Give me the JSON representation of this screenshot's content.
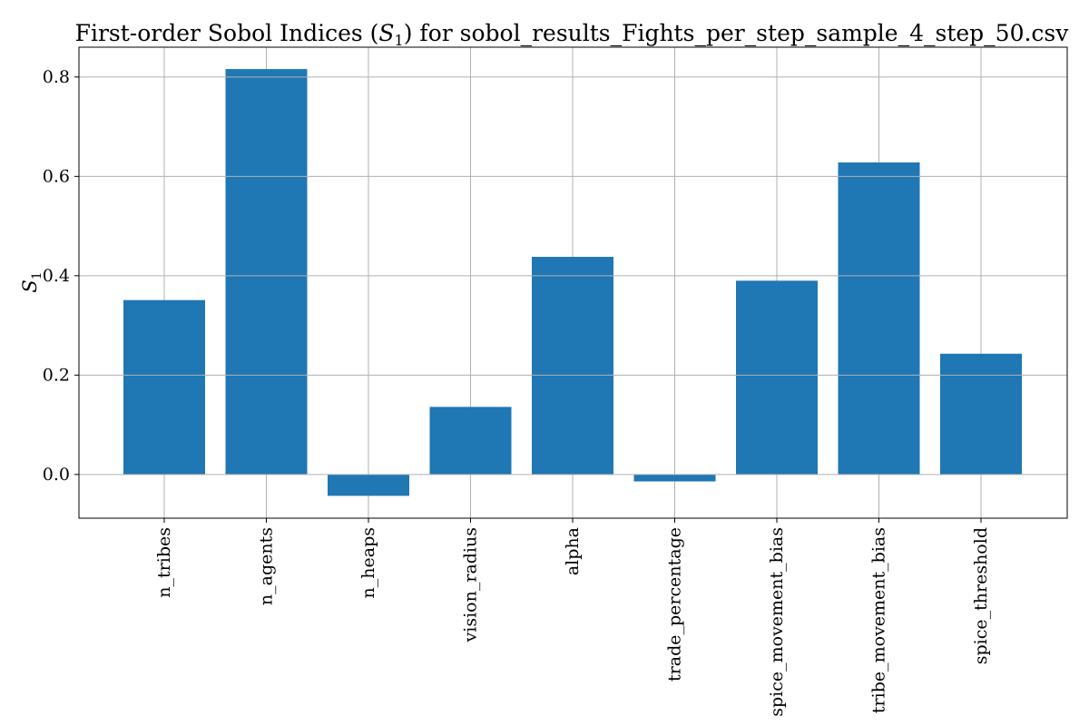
{
  "chart_data": {
    "type": "bar",
    "title_prefix": "First-order Sobol Indices (",
    "title_symbol": "S",
    "title_symbol_sub": "1",
    "title_suffix": ") for sobol_results_Fights_per_step_sample_4_step_50.csv",
    "ylabel_symbol": "S",
    "ylabel_sub": "1",
    "xlabel": "",
    "categories": [
      "n_tribes",
      "n_agents",
      "n_heaps",
      "vision_radius",
      "alpha",
      "trade_percentage",
      "spice_movement_bias",
      "tribe_movement_bias",
      "spice_threshold"
    ],
    "values": [
      0.351,
      0.816,
      -0.043,
      0.136,
      0.438,
      -0.014,
      0.39,
      0.628,
      0.243
    ],
    "ylim": [
      -0.088,
      0.86
    ],
    "yticks": [
      0.0,
      0.2,
      0.4,
      0.6,
      0.8
    ],
    "ytick_labels": [
      "0.0",
      "0.2",
      "0.4",
      "0.6",
      "0.8"
    ],
    "grid": true,
    "bar_color": "#1f77b4"
  }
}
